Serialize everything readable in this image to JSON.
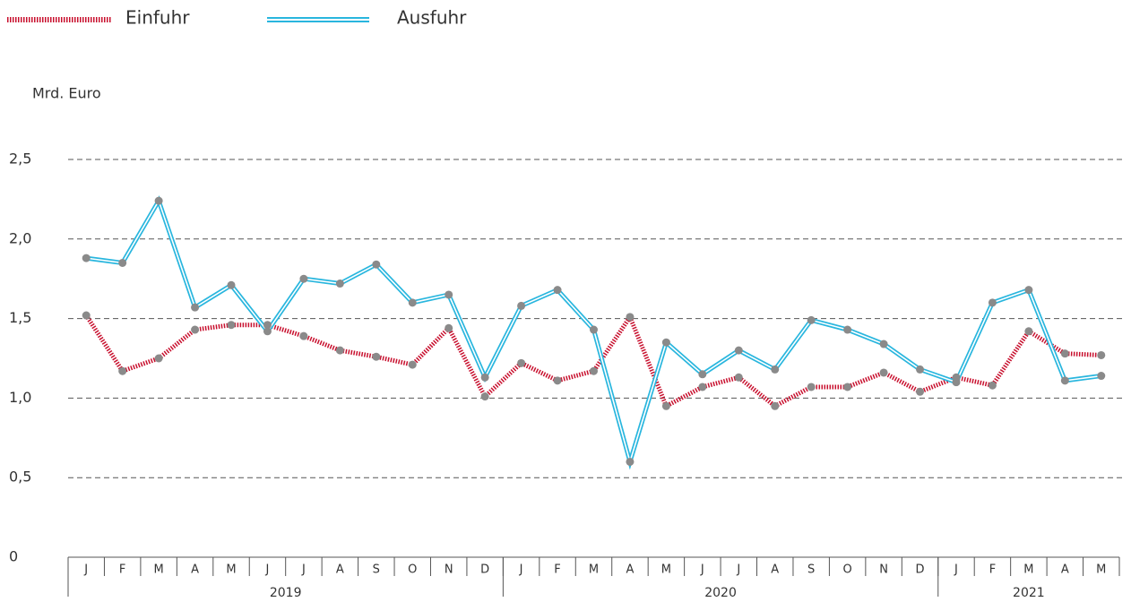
{
  "chart_data": {
    "type": "line",
    "y_label": "Mrd. Euro",
    "category_groups": [
      {
        "label": "2019",
        "categories": [
          "J",
          "F",
          "M",
          "A",
          "M",
          "J",
          "J",
          "A",
          "S",
          "O",
          "N",
          "D"
        ]
      },
      {
        "label": "2020",
        "categories": [
          "J",
          "F",
          "M",
          "A",
          "M",
          "J",
          "J",
          "A",
          "S",
          "O",
          "N",
          "D"
        ]
      },
      {
        "label": "2021",
        "categories": [
          "J",
          "F",
          "M",
          "A",
          "M"
        ]
      }
    ],
    "series": [
      {
        "name": "Einfuhr",
        "color": "#c8102e",
        "values": [
          1.52,
          1.17,
          1.25,
          1.43,
          1.46,
          1.46,
          1.39,
          1.3,
          1.26,
          1.21,
          1.44,
          1.01,
          1.22,
          1.11,
          1.17,
          1.51,
          0.95,
          1.07,
          1.13,
          0.95,
          1.07,
          1.07,
          1.16,
          1.04,
          1.13,
          1.08,
          1.42,
          1.28,
          1.27
        ]
      },
      {
        "name": "Ausfuhr",
        "color": "#29b6de",
        "values": [
          1.88,
          1.85,
          2.24,
          1.57,
          1.71,
          1.42,
          1.75,
          1.72,
          1.84,
          1.6,
          1.65,
          1.13,
          1.58,
          1.68,
          1.43,
          0.6,
          1.35,
          1.15,
          1.3,
          1.18,
          1.49,
          1.43,
          1.34,
          1.18,
          1.1,
          1.6,
          1.68,
          1.11,
          1.14
        ]
      }
    ],
    "marker_color": "#8a8a8a",
    "ylim": [
      0,
      2.5
    ],
    "yticks": [
      0,
      {
        "value": 0.5,
        "label": "0,5"
      },
      {
        "value": 1,
        "label": "1,0"
      },
      {
        "value": 1.5,
        "label": "1,5"
      },
      {
        "value": 2,
        "label": "2,0"
      },
      {
        "value": 2.5,
        "label": "2,5"
      }
    ],
    "grid": true
  }
}
